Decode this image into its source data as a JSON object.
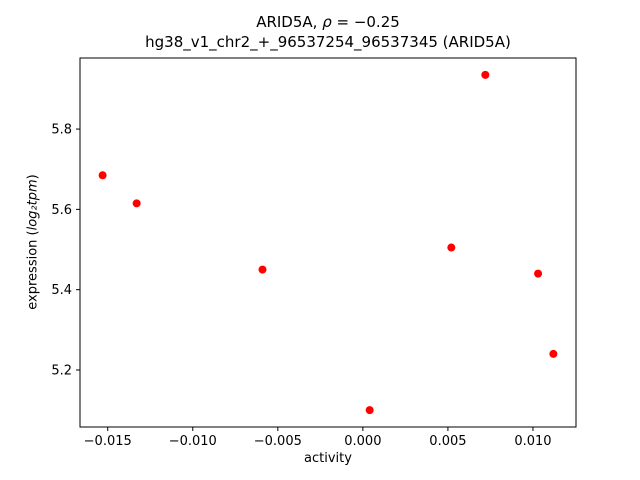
{
  "figure": {
    "title_line1": {
      "prefix": "ARID5A, ",
      "rho": "ρ",
      "rest": " = −0.25"
    },
    "title_line2": "hg38_v1_chr2_+_96537254_96537345 (ARID5A)",
    "xlabel": "activity",
    "ylabel": {
      "plain": "expression (",
      "math": "log₂tpm",
      "close": ")"
    }
  },
  "chart_data": {
    "type": "scatter",
    "title": "ARID5A, ρ = −0.25",
    "subtitle": "hg38_v1_chr2_+_96537254_96537345 (ARID5A)",
    "xlabel": "activity",
    "ylabel": "expression (log2 tpm)",
    "legend": null,
    "grid": false,
    "marker_color": "#ff0000",
    "marker_radius": 4,
    "xlim": [
      -0.01663,
      0.01253
    ],
    "ylim": [
      5.058,
      5.977
    ],
    "xticks": [
      {
        "v": -0.015,
        "label": "−0.015"
      },
      {
        "v": -0.01,
        "label": "−0.010"
      },
      {
        "v": -0.005,
        "label": "−0.005"
      },
      {
        "v": 0.0,
        "label": "0.000"
      },
      {
        "v": 0.005,
        "label": "0.005"
      },
      {
        "v": 0.01,
        "label": "0.010"
      }
    ],
    "yticks": [
      {
        "v": 5.2,
        "label": "5.2"
      },
      {
        "v": 5.4,
        "label": "5.4"
      },
      {
        "v": 5.6,
        "label": "5.6"
      },
      {
        "v": 5.8,
        "label": "5.8"
      }
    ],
    "points": [
      [
        -0.0153,
        5.685
      ],
      [
        -0.0133,
        5.615
      ],
      [
        -0.0059,
        5.45
      ],
      [
        0.0004,
        5.1
      ],
      [
        0.0052,
        5.505
      ],
      [
        0.0072,
        5.935
      ],
      [
        0.0103,
        5.44
      ],
      [
        0.0112,
        5.24
      ]
    ]
  }
}
